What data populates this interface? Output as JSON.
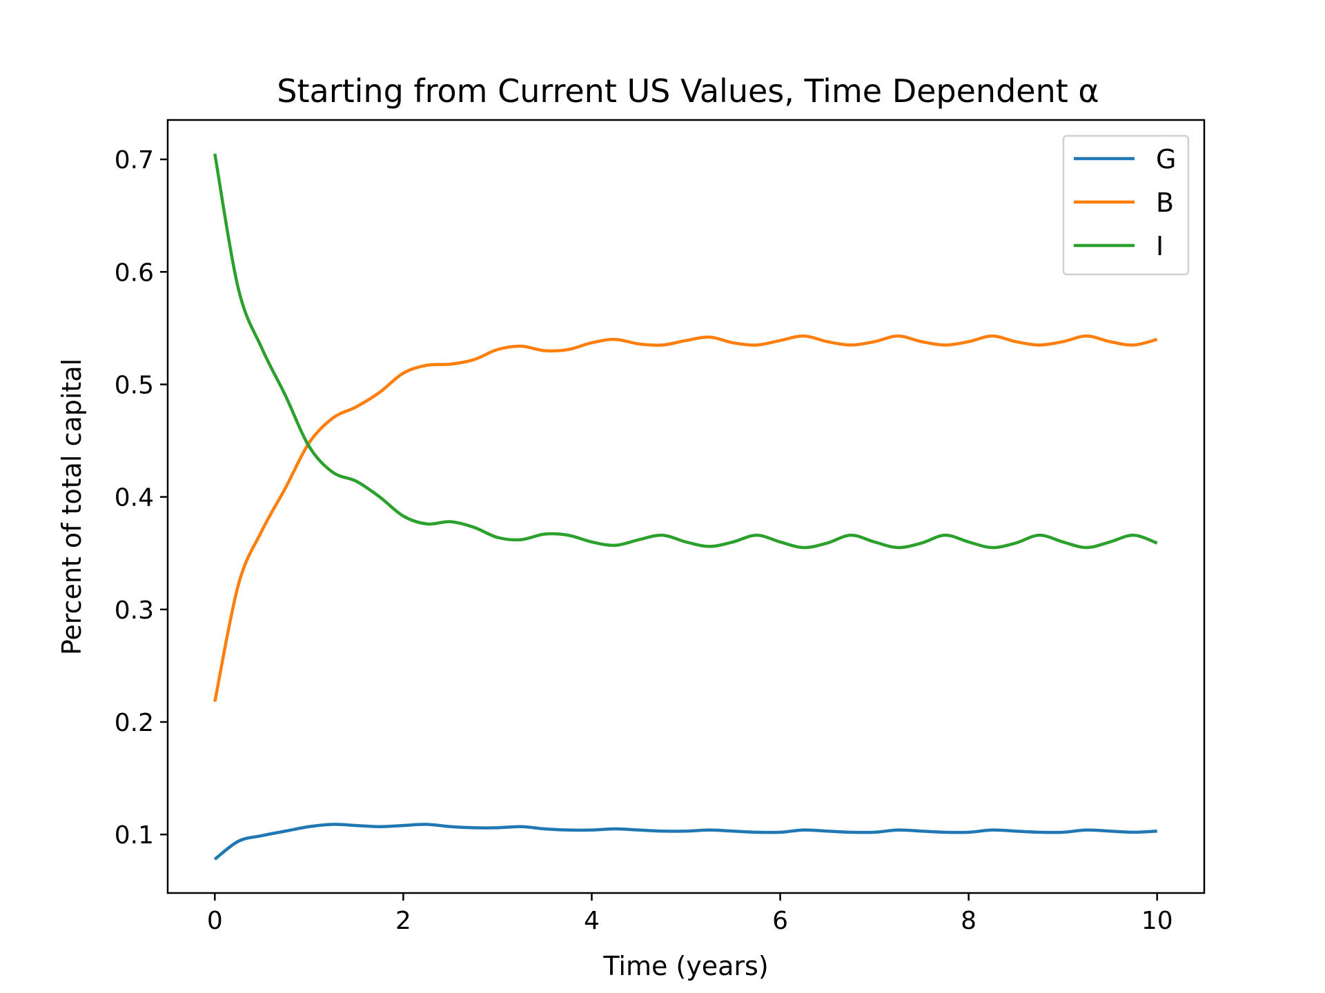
{
  "chart_data": {
    "type": "line",
    "title": "Starting from Current US Values, Time Dependent α",
    "xlabel": "Time (years)",
    "ylabel": "Percent of total capital",
    "xlim": [
      -0.5,
      10.5
    ],
    "ylim": [
      0.048,
      0.735
    ],
    "x_ticks": [
      0,
      2,
      4,
      6,
      8,
      10
    ],
    "x_tick_labels": [
      "0",
      "2",
      "4",
      "6",
      "8",
      "10"
    ],
    "y_ticks": [
      0.1,
      0.2,
      0.3,
      0.4,
      0.5,
      0.6,
      0.7
    ],
    "y_tick_labels": [
      "0.1",
      "0.2",
      "0.3",
      "0.4",
      "0.5",
      "0.6",
      "0.7"
    ],
    "grid": false,
    "legend_position": "top-right",
    "x": [
      0,
      0.25,
      0.5,
      0.75,
      1.0,
      1.25,
      1.5,
      1.75,
      2.0,
      2.25,
      2.5,
      2.75,
      3.0,
      3.25,
      3.5,
      3.75,
      4.0,
      4.25,
      4.5,
      4.75,
      5.0,
      5.25,
      5.5,
      5.75,
      6.0,
      6.25,
      6.5,
      6.75,
      7.0,
      7.25,
      7.5,
      7.75,
      8.0,
      8.25,
      8.5,
      8.75,
      9.0,
      9.25,
      9.5,
      9.75,
      10.0
    ],
    "series": [
      {
        "name": "G",
        "color": "#1f77b4",
        "values": [
          0.078,
          0.094,
          0.099,
          0.103,
          0.107,
          0.109,
          0.108,
          0.107,
          0.108,
          0.109,
          0.107,
          0.106,
          0.106,
          0.107,
          0.105,
          0.104,
          0.104,
          0.105,
          0.104,
          0.103,
          0.103,
          0.104,
          0.103,
          0.102,
          0.102,
          0.104,
          0.103,
          0.102,
          0.102,
          0.104,
          0.103,
          0.102,
          0.102,
          0.104,
          0.103,
          0.102,
          0.102,
          0.104,
          0.103,
          0.102,
          0.103
        ]
      },
      {
        "name": "B",
        "color": "#ff7f0e",
        "values": [
          0.218,
          0.322,
          0.37,
          0.408,
          0.448,
          0.47,
          0.48,
          0.493,
          0.51,
          0.517,
          0.518,
          0.522,
          0.531,
          0.534,
          0.53,
          0.531,
          0.537,
          0.54,
          0.536,
          0.535,
          0.539,
          0.542,
          0.537,
          0.535,
          0.539,
          0.543,
          0.538,
          0.535,
          0.538,
          0.543,
          0.538,
          0.535,
          0.538,
          0.543,
          0.538,
          0.535,
          0.538,
          0.543,
          0.538,
          0.535,
          0.54
        ]
      },
      {
        "name": "I",
        "color": "#2ca02c",
        "values": [
          0.705,
          0.585,
          0.532,
          0.49,
          0.445,
          0.422,
          0.414,
          0.4,
          0.383,
          0.376,
          0.378,
          0.373,
          0.364,
          0.362,
          0.367,
          0.366,
          0.36,
          0.357,
          0.362,
          0.366,
          0.36,
          0.356,
          0.36,
          0.366,
          0.36,
          0.355,
          0.359,
          0.366,
          0.36,
          0.355,
          0.359,
          0.366,
          0.36,
          0.355,
          0.359,
          0.366,
          0.36,
          0.355,
          0.36,
          0.366,
          0.359
        ]
      }
    ]
  }
}
